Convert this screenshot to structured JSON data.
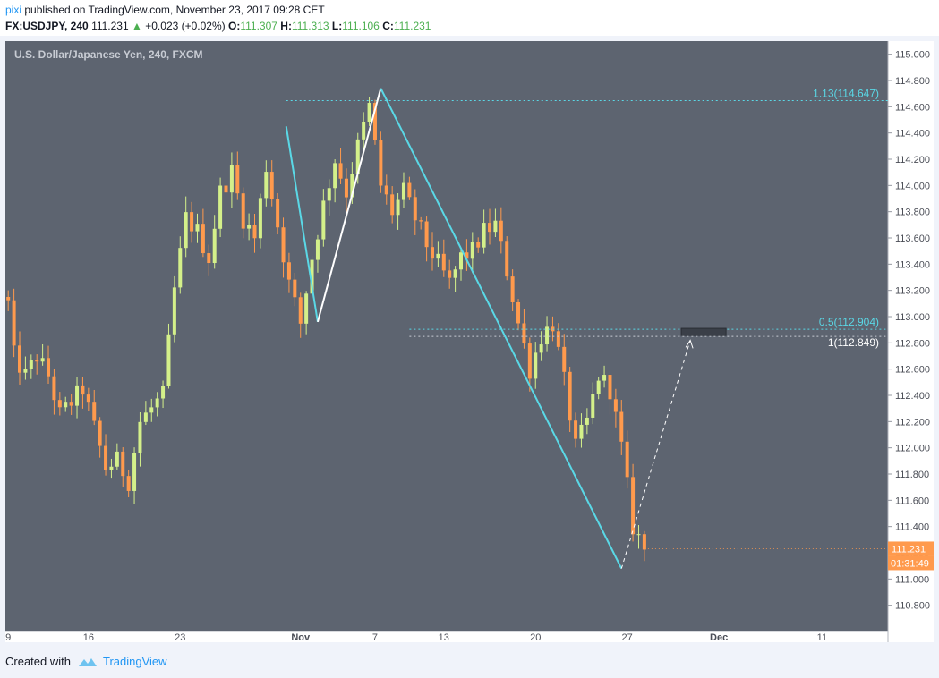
{
  "header": {
    "publisher": "pixi",
    "published_text": "published on TradingView.com, November 23, 2017 09:28 CET",
    "symbol": "FX:USDJPY, 240",
    "last": "111.231",
    "change": "+0.023 (+0.02%)",
    "o_label": "O:",
    "o_value": "111.307",
    "h_label": "H:",
    "h_value": "111.313",
    "l_label": "L:",
    "l_value": "111.106",
    "c_label": "C:",
    "c_value": "111.231"
  },
  "footer": {
    "created_with": "Created with",
    "brand": "TradingView"
  },
  "colors": {
    "background": "#5d6470",
    "up_candle": "#d4f08a",
    "down_candle": "#ff9a4d",
    "wave": "#5ad8e6",
    "leg": "#ffffff",
    "fib": "#5ad8e6",
    "price_tag": "#ff9a4d"
  },
  "chart_data": {
    "type": "candlestick",
    "title": "U.S. Dollar/Japanese Yen, 240, FXCM",
    "ylim": [
      110.6,
      115.1
    ],
    "y_ticks": [
      "115.000",
      "114.800",
      "114.600",
      "114.400",
      "114.200",
      "114.000",
      "113.800",
      "113.600",
      "113.400",
      "113.200",
      "113.000",
      "112.800",
      "112.600",
      "112.400",
      "112.200",
      "112.000",
      "111.800",
      "111.600",
      "111.400",
      "111.200",
      "111.000",
      "110.800"
    ],
    "x_ticks": [
      "9",
      "16",
      "23",
      "Nov",
      "7",
      "13",
      "20",
      "27",
      "Dec",
      "11"
    ],
    "session_index": [
      0,
      14,
      30,
      51,
      64,
      76,
      92,
      108,
      124,
      142
    ],
    "total_sessions": 154,
    "waypoints": [
      [
        0,
        113.1
      ],
      [
        1,
        112.7
      ],
      [
        3,
        112.55
      ],
      [
        5,
        112.7
      ],
      [
        7,
        112.55
      ],
      [
        9,
        112.25
      ],
      [
        11,
        112.35
      ],
      [
        13,
        112.45
      ],
      [
        15,
        112.15
      ],
      [
        17,
        111.85
      ],
      [
        19,
        111.9
      ],
      [
        21,
        111.75
      ],
      [
        23,
        112.2
      ],
      [
        25,
        112.3
      ],
      [
        27,
        112.4
      ],
      [
        29,
        113.2
      ],
      [
        31,
        113.75
      ],
      [
        33,
        113.65
      ],
      [
        35,
        113.45
      ],
      [
        37,
        113.95
      ],
      [
        39,
        114.1
      ],
      [
        41,
        113.75
      ],
      [
        43,
        113.6
      ],
      [
        45,
        114.15
      ],
      [
        47,
        113.7
      ],
      [
        49,
        113.25
      ],
      [
        51,
        112.95
      ],
      [
        53,
        113.45
      ],
      [
        55,
        113.85
      ],
      [
        57,
        114.2
      ],
      [
        59,
        113.95
      ],
      [
        61,
        114.3
      ],
      [
        63,
        114.6
      ],
      [
        65,
        114.0
      ],
      [
        67,
        113.8
      ],
      [
        69,
        113.95
      ],
      [
        71,
        113.75
      ],
      [
        73,
        113.55
      ],
      [
        75,
        113.4
      ],
      [
        77,
        113.25
      ],
      [
        79,
        113.45
      ],
      [
        81,
        113.5
      ],
      [
        83,
        113.65
      ],
      [
        85,
        113.7
      ],
      [
        87,
        113.35
      ],
      [
        89,
        112.95
      ],
      [
        91,
        112.6
      ],
      [
        93,
        112.85
      ],
      [
        95,
        112.95
      ],
      [
        97,
        112.5
      ],
      [
        99,
        112.0
      ],
      [
        101,
        112.2
      ],
      [
        103,
        112.55
      ],
      [
        105,
        112.45
      ],
      [
        107,
        112.0
      ],
      [
        109,
        111.4
      ],
      [
        111,
        111.23
      ]
    ],
    "last_price": "111.231",
    "countdown": "01:31:49",
    "fib_levels": [
      {
        "label": "1.13(114.647)",
        "price": 114.647
      },
      {
        "label": "0.5(112.904)",
        "price": 112.904
      },
      {
        "label": "1(112.849)",
        "price": 112.849
      }
    ],
    "wave_points": [
      [
        48.5,
        114.45
      ],
      [
        54,
        112.96
      ],
      [
        65,
        114.74
      ],
      [
        107,
        111.08
      ]
    ],
    "projection": [
      [
        107,
        111.08
      ],
      [
        119,
        112.82
      ]
    ]
  }
}
